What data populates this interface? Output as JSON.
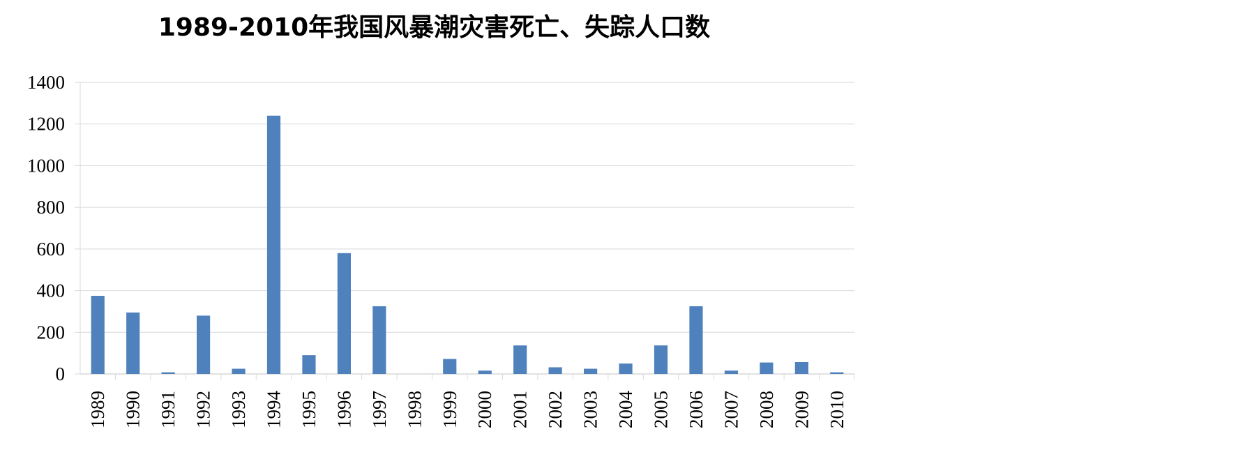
{
  "chart_data": {
    "type": "bar",
    "title": "1989-2010年我国风暴潮灾害死亡、失踪人口数",
    "categories": [
      "1989",
      "1990",
      "1991",
      "1992",
      "1993",
      "1994",
      "1995",
      "1996",
      "1997",
      "1998",
      "1999",
      "2000",
      "2001",
      "2002",
      "2003",
      "2004",
      "2005",
      "2006",
      "2007",
      "2008",
      "2009",
      "2010"
    ],
    "values": [
      375,
      295,
      8,
      280,
      25,
      1240,
      90,
      580,
      325,
      0,
      72,
      16,
      137,
      32,
      25,
      50,
      137,
      325,
      16,
      55,
      57,
      8
    ],
    "xlabel": "",
    "ylabel": "",
    "ylim": [
      0,
      1400
    ],
    "yticks": [
      0,
      200,
      400,
      600,
      800,
      1000,
      1200,
      1400
    ],
    "grid": true,
    "legend": "none",
    "bar_color": "#4F81BD",
    "grid_color": "#D9D9D9"
  }
}
